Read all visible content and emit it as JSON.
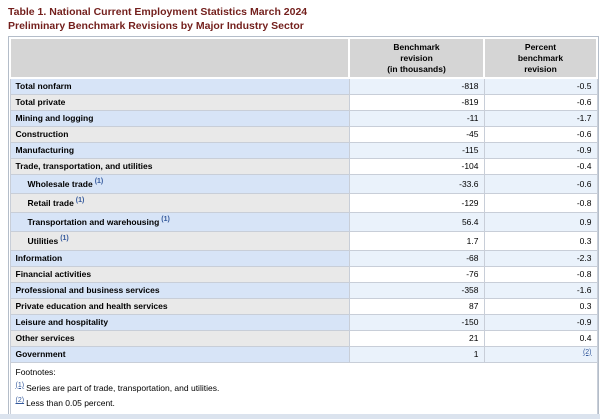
{
  "title": {
    "line1": "Table 1. National Current Employment Statistics March 2024",
    "line2": "Preliminary Benchmark Revisions by Major Industry Sector",
    "color": "#731f1c"
  },
  "table": {
    "columns": {
      "sector": "",
      "benchmark": "Benchmark\nrevision\n(in thousands)",
      "percent": "Percent\nbenchmark\nrevision"
    },
    "rows": [
      {
        "label": "Total nonfarm",
        "benchmark": "-818",
        "percent": "-0.5"
      },
      {
        "label": "Total private",
        "benchmark": "-819",
        "percent": "-0.6"
      },
      {
        "label": "Mining and logging",
        "benchmark": "-11",
        "percent": "-1.7"
      },
      {
        "label": "Construction",
        "benchmark": "-45",
        "percent": "-0.6"
      },
      {
        "label": "Manufacturing",
        "benchmark": "-115",
        "percent": "-0.9"
      },
      {
        "label": "Trade, transportation, and utilities",
        "benchmark": "-104",
        "percent": "-0.4"
      },
      {
        "label": "Wholesale trade",
        "footnote_ref": "(1)",
        "benchmark": "-33.6",
        "percent": "-0.6",
        "indented": true
      },
      {
        "label": "Retail trade",
        "footnote_ref": "(1)",
        "benchmark": "-129",
        "percent": "-0.8",
        "indented": true
      },
      {
        "label": "Transportation and warehousing",
        "footnote_ref": "(1)",
        "benchmark": "56.4",
        "percent": "0.9",
        "indented": true
      },
      {
        "label": "Utilities",
        "footnote_ref": "(1)",
        "benchmark": "1.7",
        "percent": "0.3",
        "indented": true
      },
      {
        "label": "Information",
        "benchmark": "-68",
        "percent": "-2.3"
      },
      {
        "label": "Financial activities",
        "benchmark": "-76",
        "percent": "-0.8"
      },
      {
        "label": "Professional and business services",
        "benchmark": "-358",
        "percent": "-1.6"
      },
      {
        "label": "Private education and health services",
        "benchmark": "87",
        "percent": "0.3"
      },
      {
        "label": "Leisure and hospitality",
        "benchmark": "-150",
        "percent": "-0.9"
      },
      {
        "label": "Other services",
        "benchmark": "21",
        "percent": "0.4"
      },
      {
        "label": "Government",
        "benchmark": "1",
        "percent": "(2)",
        "percent_is_footnote_link": true
      }
    ],
    "colors": {
      "header_bg": "#d5d5d5",
      "row_blue_label_bg": "#d7e4f7",
      "row_blue_value_bg": "#eaf2fb",
      "row_gray_label_bg": "#e9e9e9",
      "row_gray_value_bg": "#ffffff",
      "border": "#c8ced8",
      "link": "#34599c"
    }
  },
  "footnotes": {
    "heading": "Footnotes:",
    "items": [
      {
        "marker": "(1)",
        "text": "Series are part of trade, transportation, and utilities."
      },
      {
        "marker": "(2)",
        "text": "Less than 0.05 percent."
      }
    ]
  }
}
